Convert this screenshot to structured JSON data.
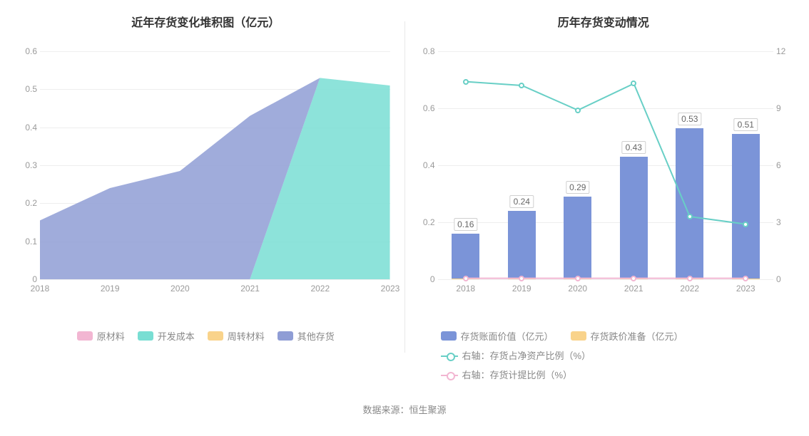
{
  "left_chart": {
    "title": "近年存货变化堆积图（亿元）",
    "type": "stacked-area",
    "x_categories": [
      "2018",
      "2019",
      "2020",
      "2021",
      "2022",
      "2023"
    ],
    "ylim": [
      0,
      0.6
    ],
    "yticks": [
      0,
      0.1,
      0.2,
      0.3,
      0.4,
      0.5,
      0.6
    ],
    "grid_color": "#eeeeee",
    "axis_label_color": "#9a9a9a",
    "axis_label_fontsize": 12,
    "background_color": "#ffffff",
    "series": [
      {
        "name": "原材料",
        "label": "原材料",
        "color": "#f2b6d2",
        "values": [
          0,
          0,
          0,
          0,
          0,
          0
        ]
      },
      {
        "name": "开发成本",
        "label": "开发成本",
        "color": "#79ded3",
        "values": [
          0,
          0,
          0,
          0,
          0.53,
          0.51
        ]
      },
      {
        "name": "周转材料",
        "label": "周转材料",
        "color": "#f9d38b",
        "values": [
          0,
          0,
          0,
          0,
          0,
          0
        ]
      },
      {
        "name": "其他存货",
        "label": "其他存货",
        "color": "#8f9dd5",
        "values": [
          0.155,
          0.24,
          0.285,
          0.43,
          0,
          0
        ]
      }
    ],
    "legend_order": [
      "原材料",
      "开发成本",
      "周转材料",
      "其他存货"
    ]
  },
  "right_chart": {
    "title": "历年存货变动情况",
    "type": "bar-line-dual-axis",
    "x_categories": [
      "2018",
      "2019",
      "2020",
      "2021",
      "2022",
      "2023"
    ],
    "y_left": {
      "lim": [
        0,
        0.8
      ],
      "ticks": [
        0,
        0.2,
        0.4,
        0.6,
        0.8
      ]
    },
    "y_right": {
      "lim": [
        0,
        12
      ],
      "ticks": [
        0,
        3,
        6,
        9,
        12
      ]
    },
    "grid_color": "#eeeeee",
    "axis_label_color": "#9a9a9a",
    "axis_label_fontsize": 12,
    "background_color": "#ffffff",
    "bar_width_ratio": 0.5,
    "bars": {
      "book_value": {
        "label": "存货账面价值（亿元）",
        "color": "#7b94d8",
        "axis": "left",
        "values": [
          0.16,
          0.24,
          0.29,
          0.43,
          0.53,
          0.51
        ],
        "value_labels": [
          "0.16",
          "0.24",
          "0.29",
          "0.43",
          "0.53",
          "0.51"
        ]
      },
      "impairment": {
        "label": "存货跌价准备（亿元）",
        "color": "#f9d38b",
        "axis": "left",
        "values": [
          0.002,
          0.002,
          0.002,
          0.002,
          0.002,
          0.002
        ]
      }
    },
    "lines": {
      "net_asset_ratio": {
        "label": "右轴：存货占净资产比例（%）",
        "color": "#68cfc6",
        "axis": "right",
        "values": [
          10.4,
          10.2,
          8.9,
          10.3,
          3.3,
          2.9
        ]
      },
      "provision_ratio": {
        "label": "右轴：存货计提比例（%）",
        "color": "#f2b6d2",
        "axis": "right",
        "values": [
          0.05,
          0.05,
          0.05,
          0.05,
          0.05,
          0.05
        ]
      }
    },
    "legend_rows": [
      [
        {
          "key": "bars.book_value",
          "swatch": "rect"
        },
        {
          "key": "bars.impairment",
          "swatch": "rect"
        }
      ],
      [
        {
          "key": "lines.net_asset_ratio",
          "swatch": "line"
        }
      ],
      [
        {
          "key": "lines.provision_ratio",
          "swatch": "line"
        }
      ]
    ]
  },
  "footer": "数据来源：恒生聚源"
}
